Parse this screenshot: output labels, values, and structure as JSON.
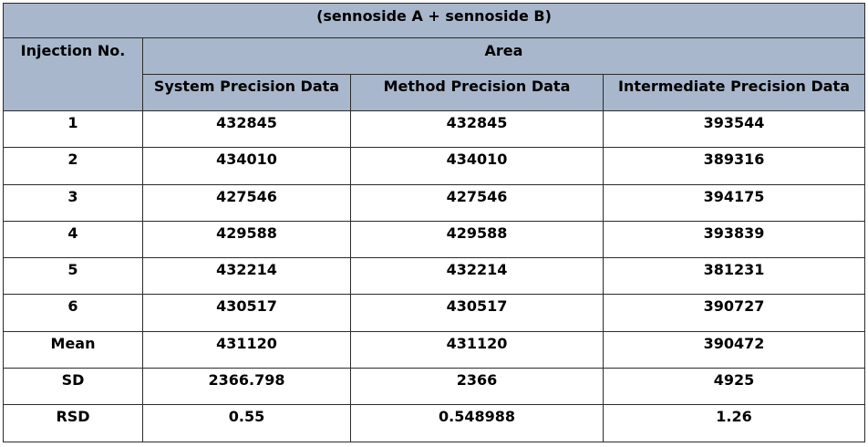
{
  "table": {
    "title": "(sennoside A + sennoside B)",
    "injection_header": "Injection No.",
    "area_header": "Area",
    "columns": [
      "System Precision Data",
      "Method Precision Data",
      "Intermediate Precision Data"
    ],
    "rows": [
      {
        "label": "1",
        "values": [
          "432845",
          "432845",
          "393544"
        ]
      },
      {
        "label": "2",
        "values": [
          "434010",
          "434010",
          "389316"
        ]
      },
      {
        "label": "3",
        "values": [
          "427546",
          "427546",
          "394175"
        ]
      },
      {
        "label": "4",
        "values": [
          "429588",
          "429588",
          "393839"
        ]
      },
      {
        "label": "5",
        "values": [
          "432214",
          "432214",
          "381231"
        ]
      },
      {
        "label": "6",
        "values": [
          "430517",
          "430517",
          "390727"
        ]
      },
      {
        "label": "Mean",
        "values": [
          "431120",
          "431120",
          "390472"
        ]
      },
      {
        "label": "SD",
        "values": [
          "2366.798",
          "2366",
          "4925"
        ]
      },
      {
        "label": "RSD",
        "values": [
          "0.55",
          "0.548988",
          "1.26"
        ]
      }
    ],
    "header_color": "#a8b7cc"
  }
}
